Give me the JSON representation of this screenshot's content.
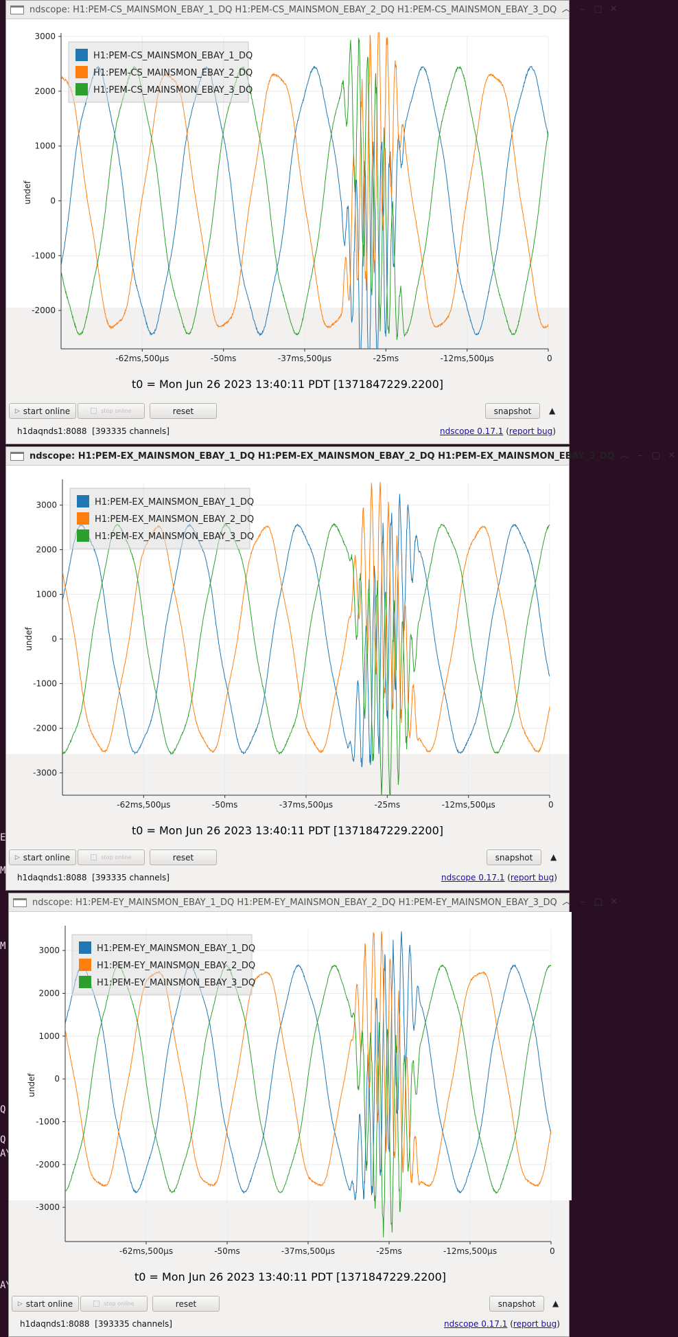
{
  "background_text": {
    "w3_left": [
      "E",
      "M",
      "M",
      "Q",
      "Q",
      "AY",
      "AY"
    ]
  },
  "colors": {
    "series1": "#1f77b4",
    "series2": "#ff7f0e",
    "series3": "#2ca02c",
    "link": "#1a0dab"
  },
  "windows": [
    {
      "title": "ndscope: H1:PEM-CS_MAINSMON_EBAY_1_DQ H1:PEM-CS_MAINSMON_EBAY_2_DQ H1:PEM-CS_MAINSMON_EBAY_3_DQ",
      "icons": [
        "window-icon",
        "chevron-up-icon",
        "minimize-icon",
        "maximize-icon",
        "close-icon"
      ],
      "t0": "t0 = Mon Jun 26 2023 13:40:11 PDT [1371847229.2200]",
      "buttons": {
        "start_online": "start online",
        "stop": "stop online",
        "reset": "reset",
        "snapshot": "snapshot"
      },
      "status": {
        "server": "h1daqnds1:8088",
        "channels": "[393335 channels]",
        "version": "ndscope 0.17.1",
        "report": "report bug"
      },
      "chart_data": {
        "type": "line",
        "ylabel": "undef",
        "ylim": [
          -2700,
          3000
        ],
        "yticks": [
          3000,
          2000,
          1000,
          0,
          -1000,
          -2000
        ],
        "ytick_labels": [
          "3000",
          "2000",
          "1000",
          "0",
          "-1000",
          "-2000"
        ],
        "xlim": [
          -75,
          0
        ],
        "xticks": [
          -62.5,
          -50,
          -37.5,
          -25,
          -12.5,
          0
        ],
        "xtick_labels": [
          "-62ms,500µs",
          "-50ms",
          "-37ms,500µs",
          "-25ms",
          "-12ms,500µs",
          "0"
        ],
        "grid": true,
        "legend_position": "top-left",
        "series": [
          {
            "name": "H1:PEM-CS_MAINSMON_EBAY_1_DQ",
            "amplitude": 2350,
            "phase_deg": 150,
            "period_ms": 16.67,
            "unit": "ms"
          },
          {
            "name": "H1:PEM-CS_MAINSMON_EBAY_2_DQ",
            "amplitude": 2350,
            "phase_deg": 270,
            "period_ms": 16.67,
            "unit": "ms"
          },
          {
            "name": "H1:PEM-CS_MAINSMON_EBAY_3_DQ",
            "amplitude": 2350,
            "phase_deg": 30,
            "period_ms": 16.67,
            "unit": "ms"
          }
        ],
        "disturbance_ms": [
          -32,
          -22
        ]
      }
    },
    {
      "title": "ndscope: H1:PEM-EX_MAINSMON_EBAY_1_DQ H1:PEM-EX_MAINSMON_EBAY_2_DQ H1:PEM-EX_MAINSMON_EBAY_3_DQ",
      "icons": [
        "window-icon",
        "chevron-up-icon",
        "minimize-icon",
        "maximize-icon",
        "close-icon"
      ],
      "t0": "t0 = Mon Jun 26 2023 13:40:11 PDT [1371847229.2200]",
      "buttons": {
        "start_online": "start online",
        "stop": "stop online",
        "reset": "reset",
        "snapshot": "snapshot"
      },
      "status": {
        "server": "h1daqnds1:8088",
        "channels": "[393335 channels]",
        "version": "ndscope 0.17.1",
        "report": "report bug"
      },
      "chart_data": {
        "type": "line",
        "ylabel": "undef",
        "ylim": [
          -3500,
          3500
        ],
        "yticks": [
          3000,
          2000,
          1000,
          0,
          -1000,
          -2000,
          -3000
        ],
        "ytick_labels": [
          "3000",
          "2000",
          "1000",
          "0",
          "-1000",
          "-2000",
          "-3000"
        ],
        "xlim": [
          -75,
          0
        ],
        "xticks": [
          -62.5,
          -50,
          -37.5,
          -25,
          -12.5,
          0
        ],
        "xtick_labels": [
          "-62ms,500µs",
          "-50ms",
          "-37ms,500µs",
          "-25ms",
          "-12ms,500µs",
          "0"
        ],
        "grid": true,
        "legend_position": "top-left",
        "series": [
          {
            "name": "H1:PEM-EX_MAINSMON_EBAY_1_DQ",
            "amplitude": 2500,
            "phase_deg": 200,
            "period_ms": 16.67,
            "unit": "ms"
          },
          {
            "name": "H1:PEM-EX_MAINSMON_EBAY_2_DQ",
            "amplitude": 2500,
            "phase_deg": 320,
            "period_ms": 16.67,
            "unit": "ms"
          },
          {
            "name": "H1:PEM-EX_MAINSMON_EBAY_3_DQ",
            "amplitude": 2500,
            "phase_deg": 80,
            "period_ms": 16.67,
            "unit": "ms"
          }
        ],
        "disturbance_ms": [
          -31,
          -20
        ]
      }
    },
    {
      "title": "ndscope: H1:PEM-EY_MAINSMON_EBAY_1_DQ H1:PEM-EY_MAINSMON_EBAY_2_DQ H1:PEM-EY_MAINSMON_EBAY_3_DQ",
      "icons": [
        "window-icon",
        "chevron-up-icon",
        "minimize-icon",
        "maximize-icon",
        "close-icon"
      ],
      "t0": "t0 = Mon Jun 26 2023 13:40:11 PDT [1371847229.2200]",
      "buttons": {
        "start_online": "start online",
        "stop": "stop online",
        "reset": "reset",
        "snapshot": "snapshot"
      },
      "status": {
        "server": "h1daqnds1:8088",
        "channels": "[393335 channels]",
        "version": "ndscope 0.17.1",
        "report": "report bug"
      },
      "chart_data": {
        "type": "line",
        "ylabel": "undef",
        "ylim": [
          -3800,
          3500
        ],
        "yticks": [
          3000,
          2000,
          1000,
          0,
          -1000,
          -2000,
          -3000
        ],
        "ytick_labels": [
          "3000",
          "2000",
          "1000",
          "0",
          "-1000",
          "-2000",
          "-3000"
        ],
        "xlim": [
          -75,
          0
        ],
        "xticks": [
          -62.5,
          -50,
          -37.5,
          -25,
          -12.5,
          0
        ],
        "xtick_labels": [
          "-62ms,500µs",
          "-50ms",
          "-37ms,500µs",
          "-25ms",
          "-12ms,500µs",
          "0"
        ],
        "grid": true,
        "legend_position": "top-left",
        "series": [
          {
            "name": "H1:PEM-EY_MAINSMON_EBAY_1_DQ",
            "amplitude": 2550,
            "phase_deg": 210,
            "period_ms": 16.67,
            "unit": "ms"
          },
          {
            "name": "H1:PEM-EY_MAINSMON_EBAY_2_DQ",
            "amplitude": 2550,
            "phase_deg": 330,
            "period_ms": 16.67,
            "unit": "ms"
          },
          {
            "name": "H1:PEM-EY_MAINSMON_EBAY_3_DQ",
            "amplitude": 2550,
            "phase_deg": 90,
            "period_ms": 16.67,
            "unit": "ms"
          }
        ],
        "disturbance_ms": [
          -31,
          -20
        ]
      }
    }
  ]
}
